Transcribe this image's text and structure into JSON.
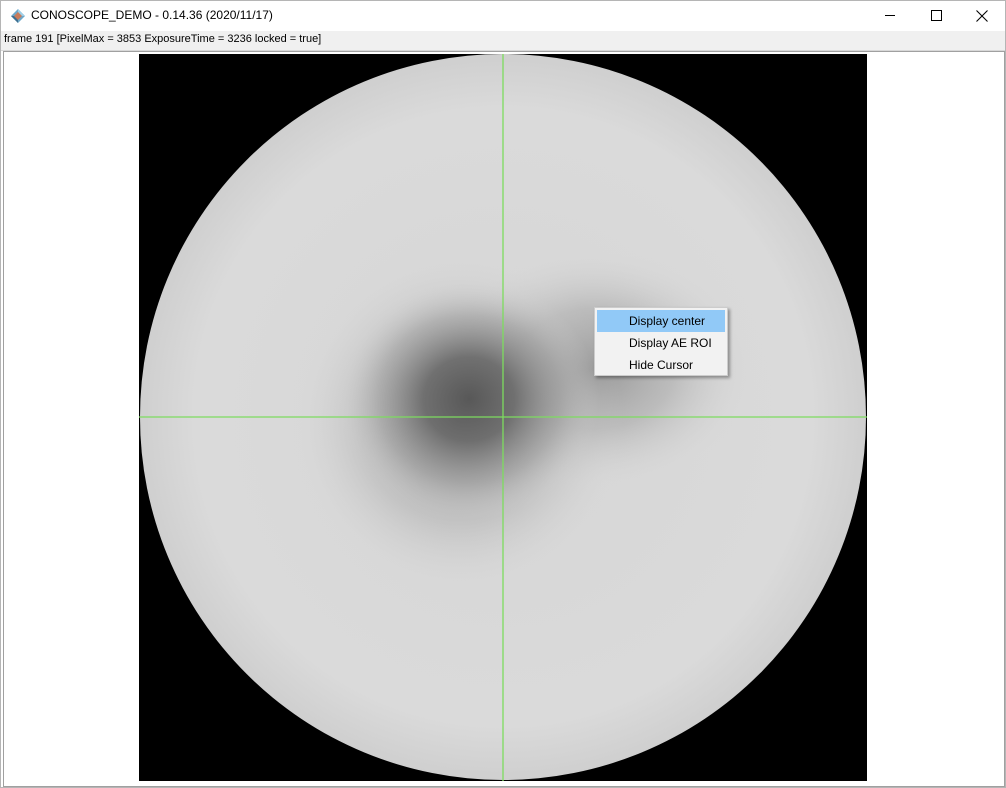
{
  "window": {
    "title": "CONOSCOPE_DEMO - 0.14.36 (2020/11/17)",
    "app_icon": "diamond-app-icon",
    "controls": {
      "minimize": "minimize-icon",
      "maximize": "maximize-icon",
      "close": "close-icon"
    }
  },
  "status": {
    "text": "frame 191 [PixelMax = 3853 ExposureTime = 3236 locked = true]"
  },
  "view": {
    "crosshair_color": "#7ddc5f",
    "background_color": "#000000"
  },
  "context_menu": {
    "items": [
      {
        "label": "Display center",
        "highlighted": true
      },
      {
        "label": "Display AE ROI",
        "highlighted": false
      },
      {
        "label": "Hide Cursor",
        "highlighted": false
      }
    ],
    "highlight_color": "#91c9f7"
  }
}
